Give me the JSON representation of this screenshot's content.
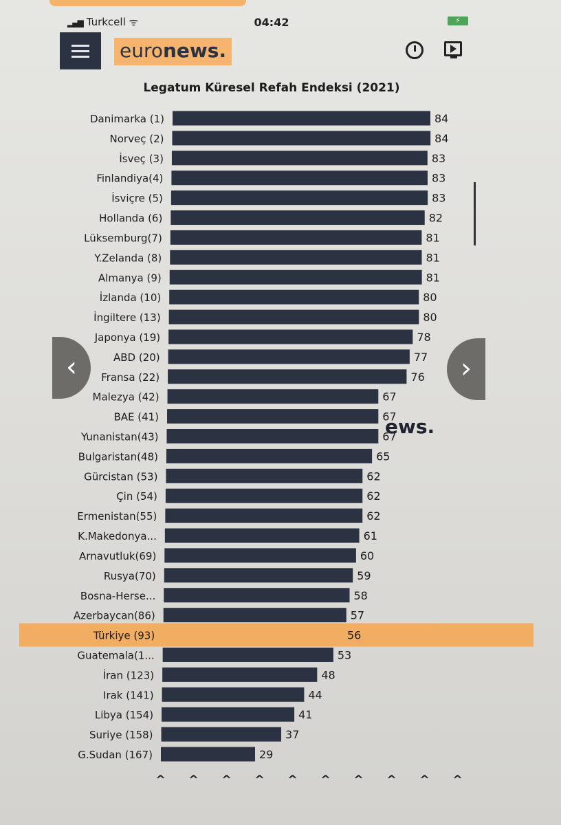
{
  "status": {
    "carrier": "Turkcell",
    "time": "04:42",
    "battery": "⚡"
  },
  "header": {
    "logo_light": "euro",
    "logo_bold": "news."
  },
  "watermark": "ews.",
  "colors": {
    "bar": "#2b3242",
    "highlight": "#f6a64e",
    "logo_bg": "#f6b46c"
  },
  "icons": [
    "menu-icon",
    "clock-icon",
    "video-icon",
    "chevron-left-icon",
    "chevron-right-icon",
    "chevron-up-icon"
  ],
  "chart_data": {
    "type": "bar",
    "orientation": "horizontal",
    "title": "Legatum Küresel Refah Endeksi (2021)",
    "categories": [
      "Danimarka (1)",
      "Norveç (2)",
      "İsveç (3)",
      "Finlandiya(4)",
      "İsviçre (5)",
      "Hollanda (6)",
      "Lüksemburg(7)",
      "Y.Zelanda (8)",
      "Almanya (9)",
      "İzlanda (10)",
      "İngiltere (13)",
      "Japonya (19)",
      "ABD (20)",
      "Fransa (22)",
      "Malezya (42)",
      "BAE (41)",
      "Yunanistan(43)",
      "Bulgaristan(48)",
      "Gürcistan (53)",
      "Çin (54)",
      "Ermenistan(55)",
      "K.Makedonya...",
      "Arnavutluk(69)",
      "Rusya(70)",
      "Bosna-Herse...",
      "Azerbaycan(86)",
      "Türkiye (93)",
      "Guatemala(1...",
      "İran (123)",
      "Irak (141)",
      "Libya (154)",
      "Suriye (158)",
      "G.Sudan (167)"
    ],
    "values": [
      84,
      84,
      83,
      83,
      83,
      82,
      81,
      81,
      81,
      80,
      80,
      78,
      77,
      76,
      67,
      67,
      67,
      65,
      62,
      62,
      62,
      61,
      60,
      59,
      58,
      57,
      56,
      53,
      48,
      44,
      41,
      37,
      29
    ],
    "highlighted": "Türkiye (93)",
    "xlim": [
      0,
      84
    ],
    "grid": false,
    "legend": "none"
  }
}
